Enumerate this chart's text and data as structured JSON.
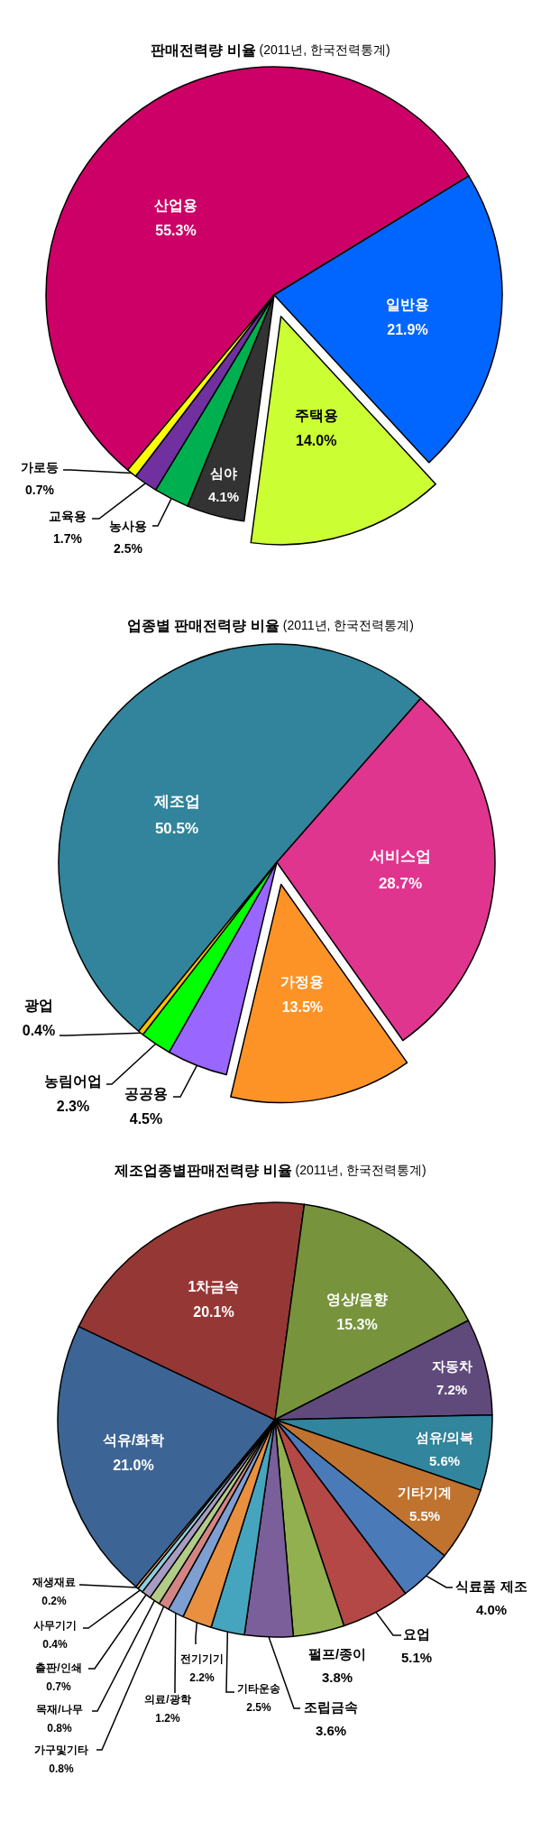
{
  "chart_data": [
    {
      "type": "pie",
      "title": "판매전력량 비율",
      "subtitle": "(2011년, 한국전력통계)",
      "categories": [
        "산업용",
        "일반용",
        "주택용",
        "심야",
        "농사용",
        "교육용",
        "가로등"
      ],
      "values": [
        55.3,
        21.9,
        14.0,
        4.1,
        2.5,
        1.7,
        0.7
      ],
      "colors": [
        "#cc0066",
        "#0066ff",
        "#ccff33",
        "#333333",
        "#00b050",
        "#7030a0",
        "#ffff00"
      ],
      "value_labels": [
        "55.3%",
        "21.9%",
        "14.0%",
        "4.1%",
        "2.5%",
        "1.7%",
        "0.7%"
      ]
    },
    {
      "type": "pie",
      "title": "업종별 판매전력량 비율",
      "subtitle": "(2011년, 한국전력통계)",
      "categories": [
        "제조업",
        "서비스업",
        "가정용",
        "공공용",
        "농림어업",
        "광업"
      ],
      "values": [
        50.5,
        28.7,
        13.5,
        4.5,
        2.3,
        0.4
      ],
      "colors": [
        "#31849b",
        "#e0358f",
        "#fd9326",
        "#9966ff",
        "#00ff00",
        "#ffc000"
      ],
      "value_labels": [
        "50.5%",
        "28.7%",
        "13.5%",
        "4.5%",
        "2.3%",
        "0.4%"
      ]
    },
    {
      "type": "pie",
      "title": "제조업종별판매전력량 비율",
      "subtitle": "(2011년, 한국전력통계)",
      "categories": [
        "석유/화학",
        "1차금속",
        "영상/음향",
        "자동차",
        "섬유/의복",
        "기타기계",
        "식료품 제조",
        "요업",
        "펄프/종이",
        "조립금속",
        "기타운송",
        "전기기기",
        "의료/광학",
        "가구및기타",
        "목재/나무",
        "출판/인쇄",
        "사무기기",
        "재생재료"
      ],
      "values": [
        21.0,
        20.1,
        15.3,
        7.2,
        5.6,
        5.5,
        4.0,
        5.1,
        3.8,
        3.6,
        2.5,
        2.2,
        1.2,
        0.8,
        0.8,
        0.7,
        0.4,
        0.2
      ],
      "colors": [
        "#3c6595",
        "#953735",
        "#77933c",
        "#604a7b",
        "#31859c",
        "#c0732f",
        "#4a7ab8",
        "#b44846",
        "#92b050",
        "#7a5f9a",
        "#45a5bf",
        "#e8903f",
        "#7e9fd2",
        "#d38585",
        "#b2cb86",
        "#a89cc2",
        "#8ecfe0",
        "#f7b47a"
      ],
      "value_labels": [
        "21.0%",
        "20.1%",
        "15.3%",
        "7.2%",
        "5.6%",
        "5.5%",
        "4.0%",
        "5.1%",
        "3.8%",
        "3.6%",
        "2.5%",
        "2.2%",
        "1.2%",
        "0.8%",
        "0.8%",
        "0.7%",
        "0.4%",
        "0.2%"
      ]
    }
  ]
}
